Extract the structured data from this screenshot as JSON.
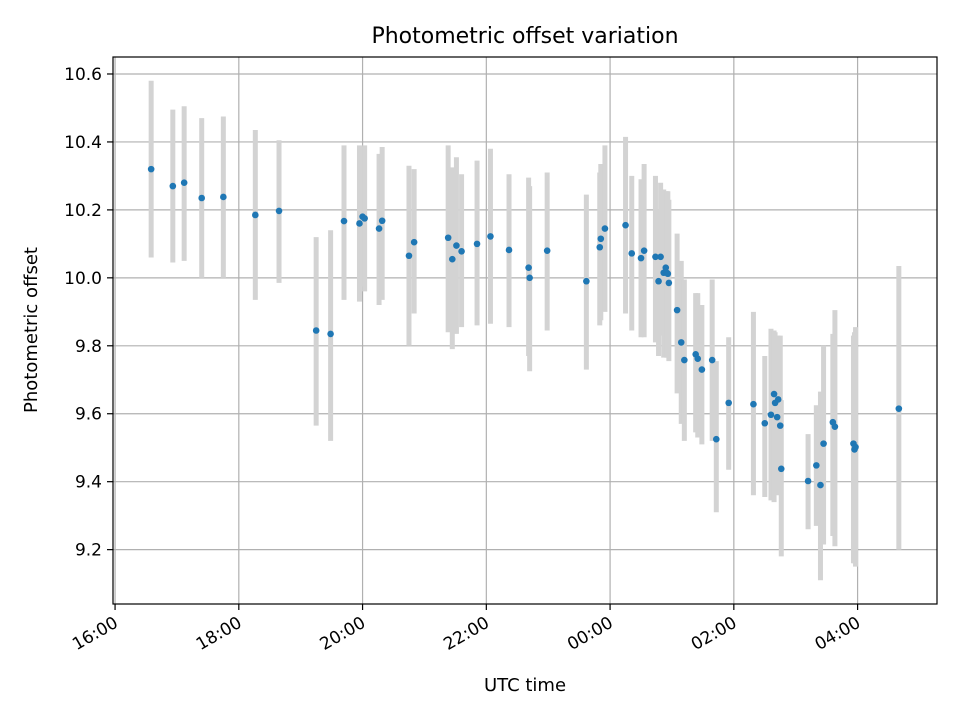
{
  "chart_data": {
    "type": "scatter",
    "title": "Photometric offset variation",
    "xlabel": "UTC time",
    "ylabel": "Photometric offset",
    "xlim": [
      "15:58",
      "05:17"
    ],
    "ylim": [
      9.04,
      10.65
    ],
    "x_ticks": [
      "16:00",
      "18:00",
      "20:00",
      "22:00",
      "00:00",
      "02:00",
      "04:00"
    ],
    "y_ticks": [
      9.2,
      9.4,
      9.6,
      9.8,
      10.0,
      10.2,
      10.4,
      10.6
    ],
    "y_tick_labels": [
      "9.2",
      "9.4",
      "9.6",
      "9.8",
      "10.0",
      "10.2",
      "10.4",
      "10.6"
    ],
    "grid": true,
    "colors": {
      "point": "#1f77b4",
      "errorbar": "#d3d3d3",
      "grid": "#b0b0b0"
    },
    "series": [
      {
        "x": [
          "16:35",
          "16:56",
          "17:07",
          "17:24",
          "17:45",
          "18:16",
          "18:39",
          "19:15",
          "19:29",
          "19:42",
          "19:57",
          "20:00",
          "20:02",
          "20:16",
          "20:19",
          "20:45",
          "20:50",
          "21:23",
          "21:27",
          "21:31",
          "21:36",
          "21:51",
          "22:04",
          "22:22",
          "22:41",
          "22:42",
          "22:59",
          "23:37",
          "23:50",
          "23:51",
          "23:55",
          "00:15",
          "00:21",
          "00:30",
          "00:33",
          "00:44",
          "00:47",
          "00:49",
          "00:52",
          "00:54",
          "00:55",
          "00:56",
          "00:57",
          "01:05",
          "01:09",
          "01:12",
          "01:23",
          "01:25",
          "01:29",
          "01:39",
          "01:43",
          "01:55",
          "02:19",
          "02:30",
          "02:36",
          "02:39",
          "02:40",
          "02:42",
          "02:43",
          "02:45",
          "02:46",
          "03:12",
          "03:20",
          "03:24",
          "03:27",
          "03:36",
          "03:38",
          "03:56",
          "03:57",
          "03:58",
          "04:40"
        ],
        "y": [
          10.32,
          10.27,
          10.28,
          10.235,
          10.238,
          10.185,
          10.197,
          9.845,
          9.835,
          10.167,
          10.16,
          10.18,
          10.175,
          10.145,
          10.168,
          10.065,
          10.105,
          10.118,
          10.055,
          10.095,
          10.078,
          10.1,
          10.122,
          10.082,
          10.03,
          10.0,
          10.08,
          9.99,
          10.09,
          10.115,
          10.145,
          10.155,
          10.072,
          10.058,
          10.08,
          10.062,
          9.99,
          10.062,
          10.015,
          10.03,
          10.015,
          10.012,
          9.985,
          9.905,
          9.81,
          9.758,
          9.775,
          9.762,
          9.73,
          9.758,
          9.525,
          9.632,
          9.628,
          9.572,
          9.597,
          9.658,
          9.632,
          9.59,
          9.642,
          9.565,
          9.438,
          9.402,
          9.448,
          9.39,
          9.512,
          9.575,
          9.562,
          9.512,
          9.495,
          9.502,
          9.615
        ],
        "err_low": [
          10.06,
          10.045,
          10.05,
          10.0,
          10.0,
          9.935,
          9.985,
          9.565,
          9.52,
          9.935,
          9.93,
          9.975,
          9.96,
          9.92,
          9.935,
          9.8,
          9.895,
          9.84,
          9.79,
          9.835,
          9.855,
          9.86,
          9.865,
          9.855,
          9.77,
          9.725,
          9.845,
          9.73,
          9.86,
          9.875,
          9.9,
          9.895,
          9.845,
          9.825,
          9.825,
          9.81,
          9.77,
          9.83,
          9.765,
          9.785,
          9.765,
          9.765,
          9.755,
          9.66,
          9.57,
          9.52,
          9.545,
          9.53,
          9.51,
          9.52,
          9.31,
          9.435,
          9.36,
          9.355,
          9.345,
          9.34,
          9.44,
          9.36,
          9.41,
          9.365,
          9.18,
          9.26,
          9.27,
          9.11,
          9.215,
          9.24,
          9.21,
          9.16,
          9.16,
          9.15,
          9.2
        ],
        "err_high": [
          10.58,
          10.495,
          10.505,
          10.47,
          10.475,
          10.435,
          10.405,
          10.12,
          10.14,
          10.39,
          10.39,
          10.385,
          10.39,
          10.365,
          10.385,
          10.33,
          10.32,
          10.39,
          10.325,
          10.355,
          10.305,
          10.345,
          10.38,
          10.305,
          10.295,
          10.27,
          10.31,
          10.245,
          10.31,
          10.335,
          10.39,
          10.415,
          10.3,
          10.29,
          10.335,
          10.3,
          10.2,
          10.28,
          10.26,
          10.255,
          10.255,
          10.255,
          10.23,
          10.13,
          10.05,
          9.995,
          9.955,
          9.955,
          9.92,
          9.995,
          9.755,
          9.825,
          9.9,
          9.77,
          9.85,
          9.845,
          9.84,
          9.81,
          9.83,
          9.83,
          9.64,
          9.54,
          9.625,
          9.665,
          9.8,
          9.835,
          9.905,
          9.83,
          9.84,
          9.855,
          10.035
        ]
      }
    ]
  }
}
